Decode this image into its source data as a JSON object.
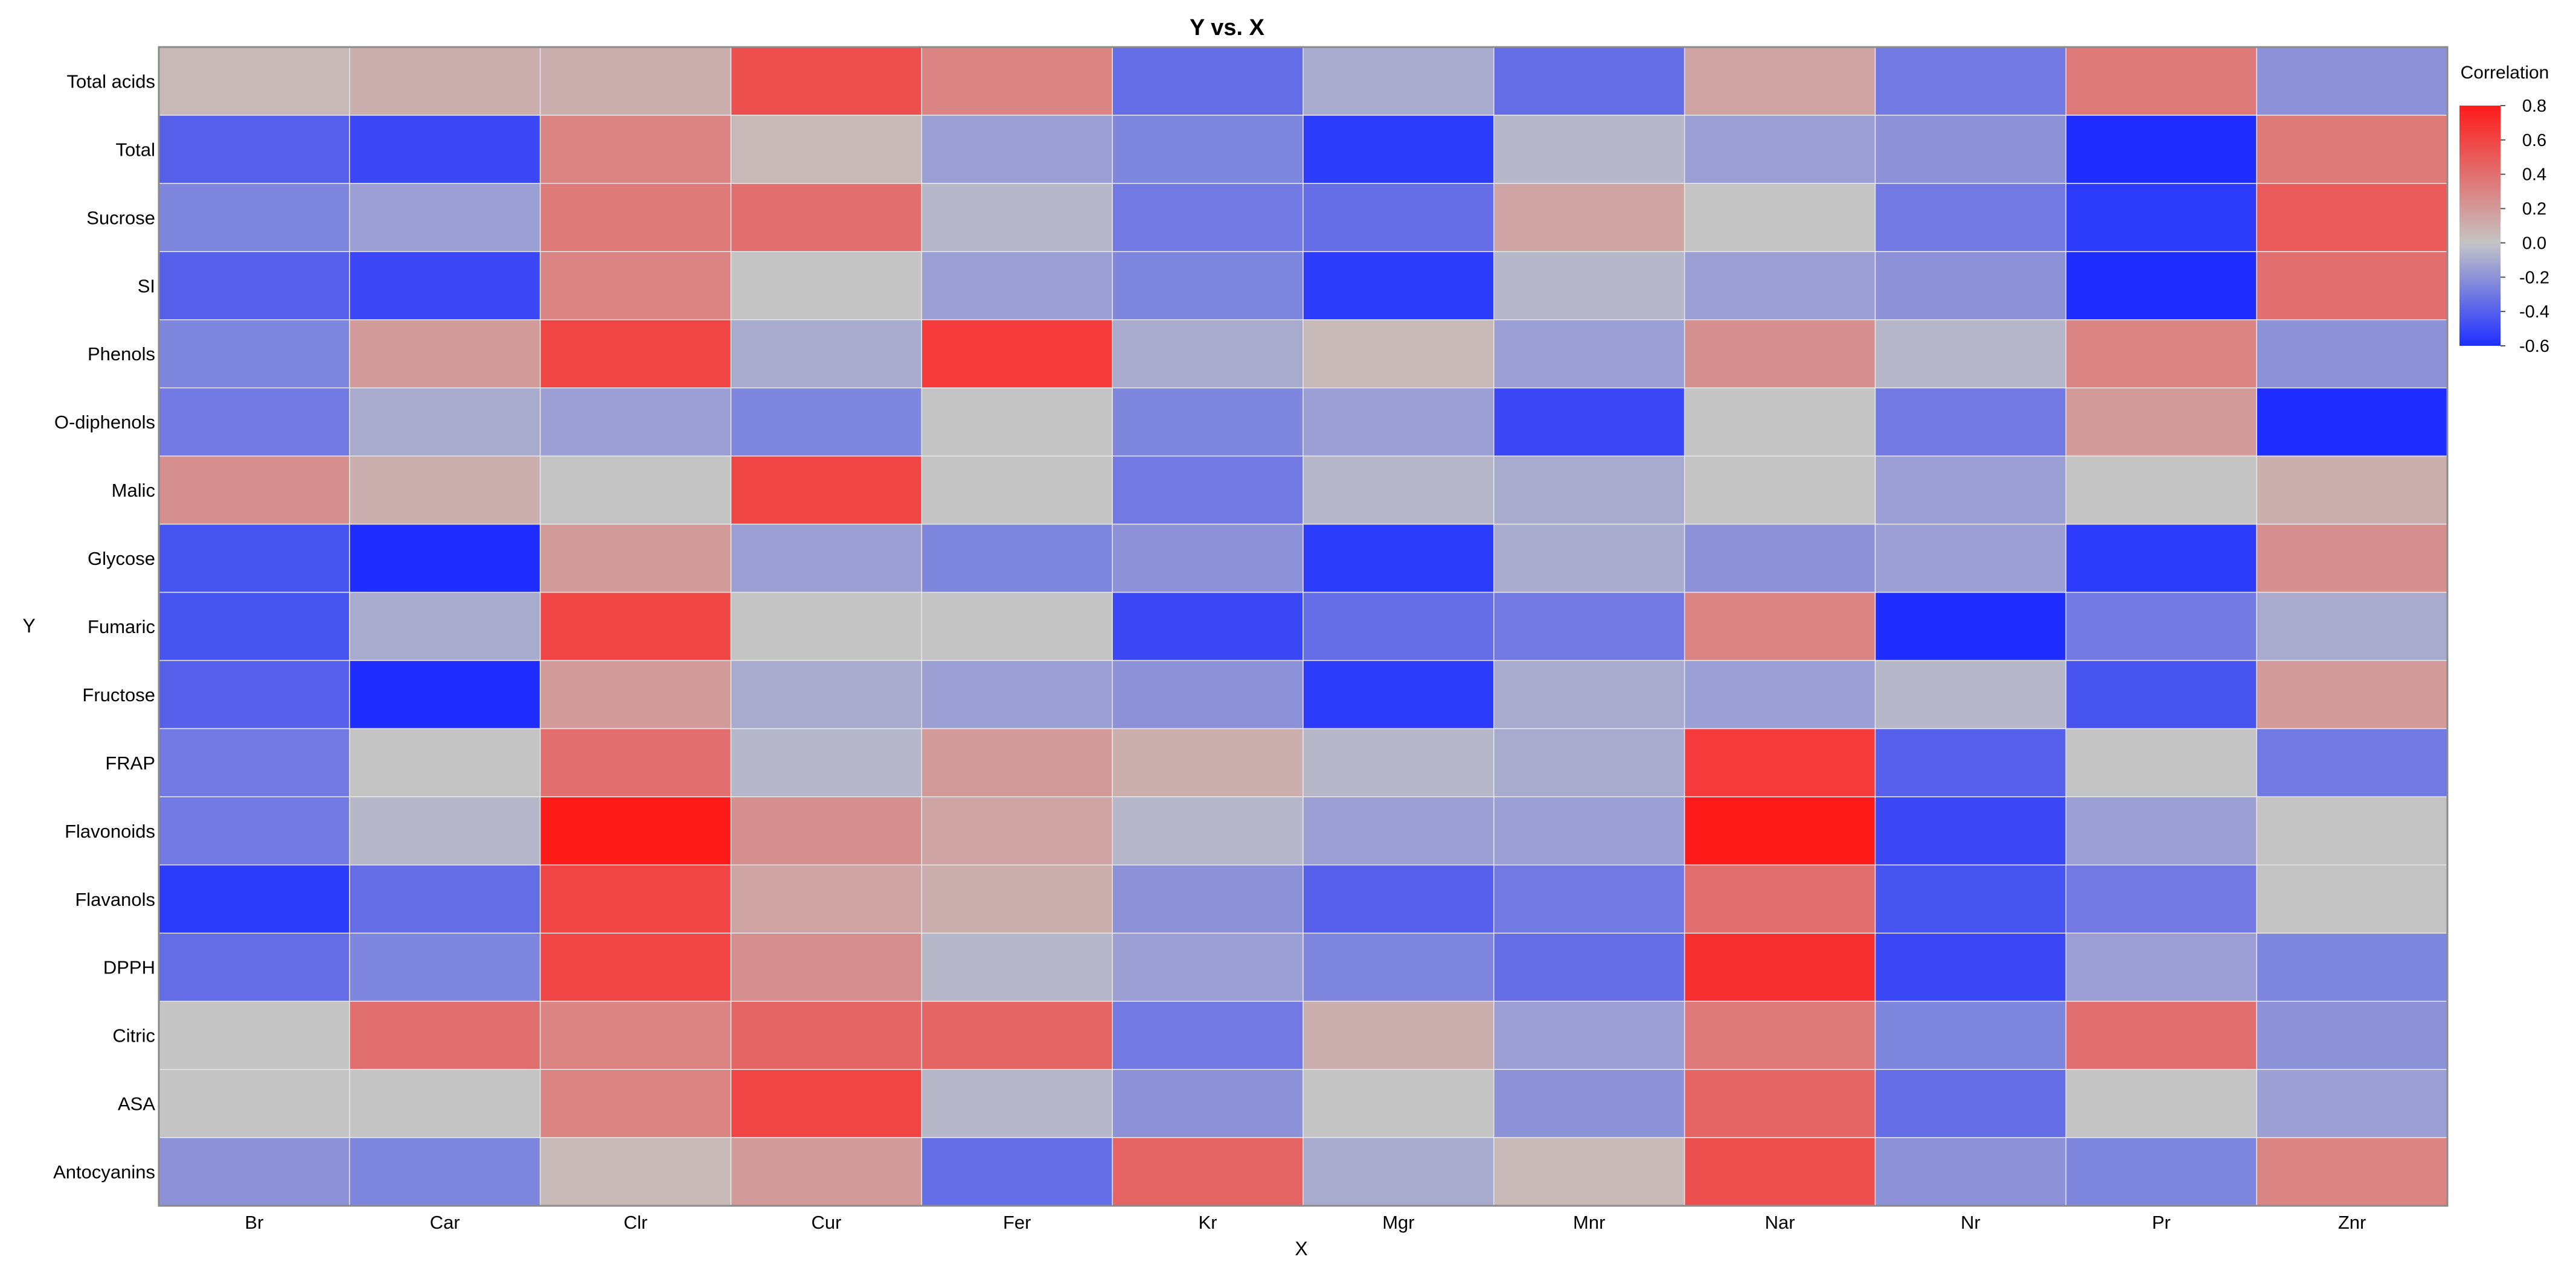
{
  "chart_data": {
    "type": "heatmap",
    "title": "Y vs. X",
    "xlabel": "X",
    "ylabel": "Y",
    "x_categories": [
      "Br",
      "Car",
      "Clr",
      "Cur",
      "Fer",
      "Kr",
      "Mgr",
      "Mnr",
      "Nar",
      "Nr",
      "Pr",
      "Znr"
    ],
    "y_categories": [
      "Total acids",
      "Total",
      "Sucrose",
      "SI",
      "Phenols",
      "O-diphenols",
      "Malic",
      "Glycose",
      "Fumaric",
      "Fructose",
      "FRAP",
      "Flavonoids",
      "Flavanols",
      "DPPH",
      "Citric",
      "ASA",
      "Antocyanins"
    ],
    "values": [
      [
        0.05,
        0.1,
        0.1,
        0.55,
        0.3,
        -0.35,
        -0.1,
        -0.35,
        0.15,
        -0.3,
        0.35,
        -0.2
      ],
      [
        -0.4,
        -0.5,
        0.3,
        0.05,
        -0.15,
        -0.25,
        -0.55,
        -0.05,
        -0.15,
        -0.2,
        -0.6,
        0.35
      ],
      [
        -0.25,
        -0.15,
        0.35,
        0.4,
        -0.05,
        -0.3,
        -0.35,
        0.15,
        0.0,
        -0.3,
        -0.55,
        0.5
      ],
      [
        -0.4,
        -0.5,
        0.3,
        0.0,
        -0.15,
        -0.25,
        -0.55,
        -0.05,
        -0.15,
        -0.2,
        -0.6,
        0.4
      ],
      [
        -0.25,
        0.2,
        0.6,
        -0.1,
        0.65,
        -0.1,
        0.05,
        -0.15,
        0.25,
        -0.05,
        0.3,
        -0.2
      ],
      [
        -0.3,
        -0.1,
        -0.15,
        -0.25,
        0.0,
        -0.25,
        -0.15,
        -0.5,
        0.0,
        -0.3,
        0.2,
        -0.6
      ],
      [
        0.25,
        0.1,
        0.0,
        0.6,
        0.0,
        -0.3,
        -0.05,
        -0.1,
        0.0,
        -0.15,
        0.0,
        0.1
      ],
      [
        -0.45,
        -0.6,
        0.2,
        -0.15,
        -0.25,
        -0.2,
        -0.55,
        -0.1,
        -0.2,
        -0.15,
        -0.55,
        0.25
      ],
      [
        -0.45,
        -0.1,
        0.6,
        0.0,
        0.0,
        -0.5,
        -0.35,
        -0.3,
        0.3,
        -0.6,
        -0.3,
        -0.1
      ],
      [
        -0.4,
        -0.6,
        0.2,
        -0.1,
        -0.15,
        -0.2,
        -0.55,
        -0.1,
        -0.15,
        -0.05,
        -0.45,
        0.2
      ],
      [
        -0.3,
        0.0,
        0.4,
        -0.05,
        0.2,
        0.1,
        -0.05,
        -0.1,
        0.65,
        -0.4,
        0.0,
        -0.3
      ],
      [
        -0.3,
        -0.05,
        0.8,
        0.25,
        0.15,
        -0.05,
        -0.15,
        -0.15,
        0.8,
        -0.5,
        -0.15,
        0.0
      ],
      [
        -0.55,
        -0.35,
        0.6,
        0.15,
        0.1,
        -0.2,
        -0.4,
        -0.3,
        0.4,
        -0.45,
        -0.3,
        0.0
      ],
      [
        -0.35,
        -0.25,
        0.6,
        0.25,
        -0.05,
        -0.15,
        -0.25,
        -0.35,
        0.7,
        -0.5,
        -0.15,
        -0.25
      ],
      [
        0.0,
        0.4,
        0.3,
        0.45,
        0.45,
        -0.3,
        0.1,
        -0.15,
        0.35,
        -0.25,
        0.4,
        -0.2
      ],
      [
        0.0,
        0.0,
        0.3,
        0.6,
        -0.05,
        -0.2,
        0.0,
        -0.2,
        0.45,
        -0.35,
        0.0,
        -0.15
      ],
      [
        -0.2,
        -0.25,
        0.05,
        0.2,
        -0.35,
        0.45,
        -0.1,
        0.05,
        0.55,
        -0.2,
        -0.25,
        0.3
      ]
    ],
    "colorbar": {
      "title": "Correlation",
      "min": -0.6,
      "max": 0.8,
      "ticks": [
        "0.8",
        "0.6",
        "0.4",
        "0.2",
        "0.0",
        "-0.2",
        "-0.4",
        "-0.6"
      ],
      "low_color": "#1f2eff",
      "mid_color": "#c4c4c4",
      "high_color": "#ff1a1a"
    },
    "grid": true,
    "legend_position": "right"
  }
}
